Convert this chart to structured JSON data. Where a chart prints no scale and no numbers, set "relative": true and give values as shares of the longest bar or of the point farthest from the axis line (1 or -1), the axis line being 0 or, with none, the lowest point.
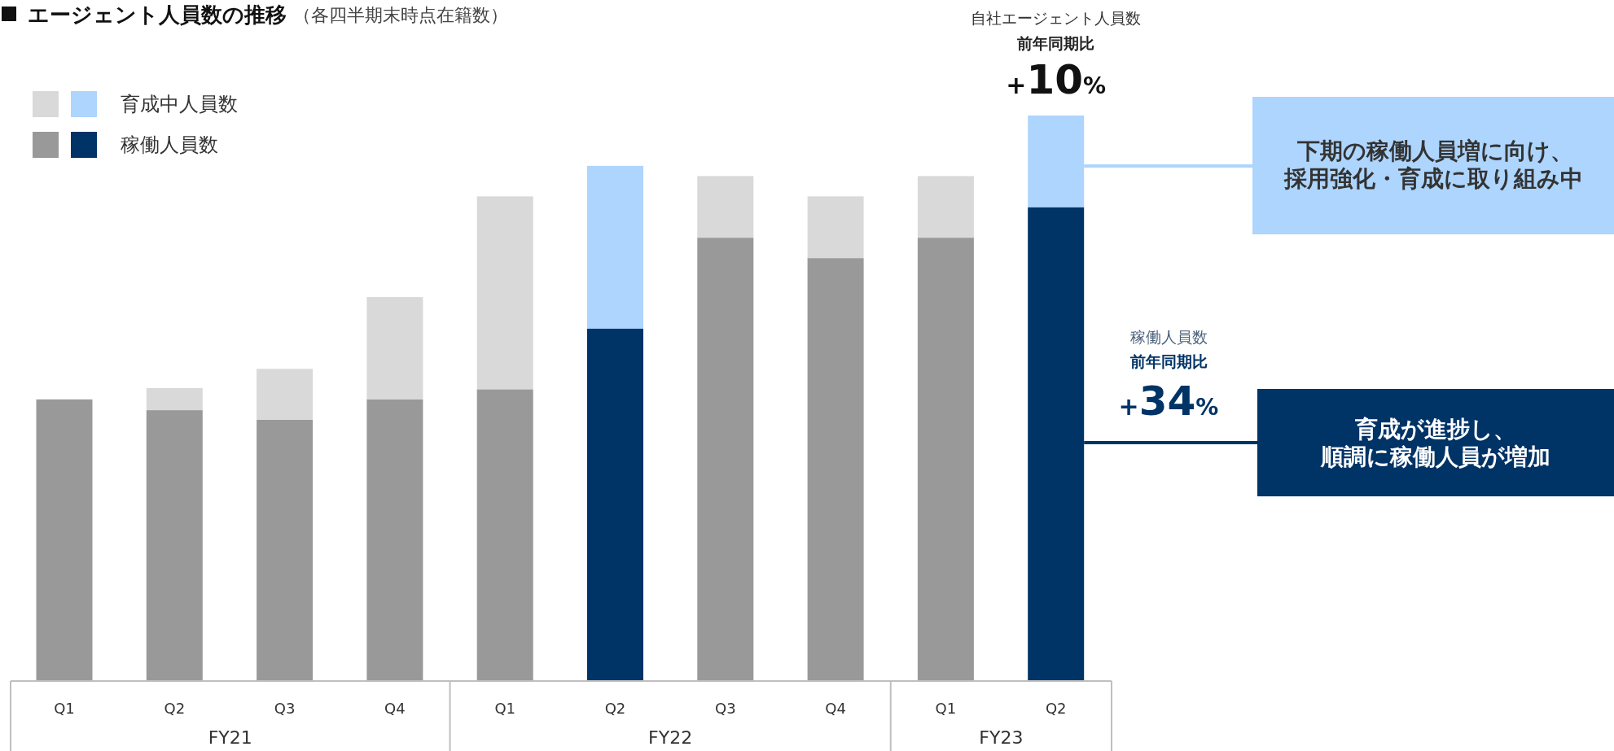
{
  "chart_data": {
    "type": "bar",
    "title": "エージェント人員数の推移",
    "subtitle": "（各四半期末時点在籍数）",
    "stacked": true,
    "relative": true,
    "legend": "top left",
    "categories": [
      "Q1",
      "Q2",
      "Q3",
      "Q4",
      "Q1",
      "Q2",
      "Q3",
      "Q4",
      "Q1",
      "Q2"
    ],
    "series": [
      {
        "name": "稼働人員数",
        "color": "#999999",
        "colors": [
          "#999999",
          "#999999",
          "#999999",
          "#999999",
          "#999999",
          "#003366",
          "#999999",
          "#999999",
          "#999999",
          "#003366"
        ],
        "values": [
          0.498,
          0.479,
          0.462,
          0.498,
          0.516,
          0.623,
          0.784,
          0.748,
          0.784,
          0.838
        ]
      },
      {
        "name": "育成中人員数",
        "color": "#d9d9d9",
        "colors": [
          "#d9d9d9",
          "#d9d9d9",
          "#d9d9d9",
          "#d9d9d9",
          "#d9d9d9",
          "#add5fd",
          "#d9d9d9",
          "#d9d9d9",
          "#d9d9d9",
          "#add5fd"
        ],
        "values": [
          null,
          0.039,
          0.09,
          0.181,
          0.341,
          0.288,
          0.109,
          0.109,
          0.109,
          0.162
        ]
      }
    ],
    "annotations": [
      "FY21",
      "FY22",
      "FY23",
      "自社エージェント人員数",
      "前年同期比",
      "+10%",
      "稼働人員数",
      "前年同期比",
      "+34%",
      "下期の稼働人員増に向け、",
      "採用強化・育成に取り組み中",
      "育成が進捗し、",
      "順調に稼働人員が増加"
    ]
  }
}
